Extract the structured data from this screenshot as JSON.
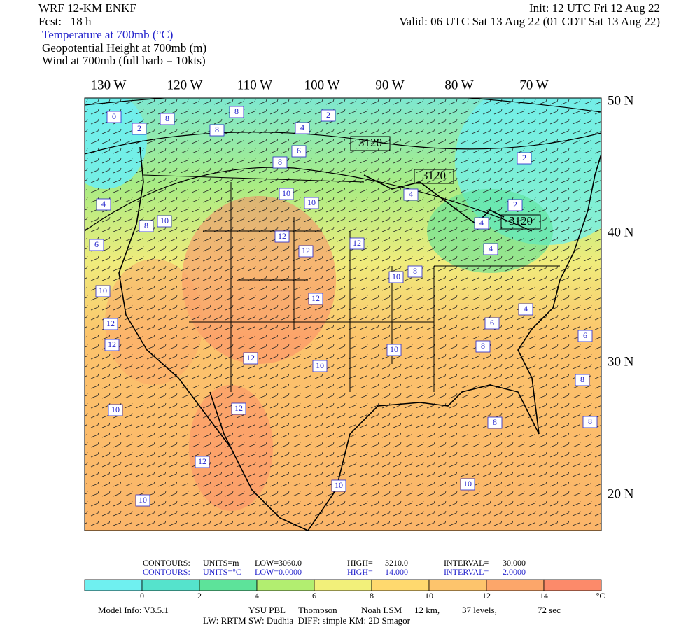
{
  "header": {
    "model": "WRF 12-KM ENKF",
    "forecast": "Fcst:   18 h",
    "init": "Init: 12 UTC Fri 12 Aug 22",
    "valid": "Valid: 06 UTC Sat 13 Aug 22 (01 CDT Sat 13 Aug 22)",
    "fields": [
      "Temperature at 700mb (°C)",
      "Geopotential Height at 700mb (m)",
      "Wind at 700mb (full barb = 10kts)"
    ]
  },
  "map": {
    "lon_labels": [
      "130 W",
      "120 W",
      "110 W",
      "100 W",
      "90 W",
      "80 W",
      "70 W"
    ],
    "lat_labels": [
      "50 N",
      "40 N",
      "30 N",
      "20 N"
    ],
    "height_labels": [
      3120,
      3120,
      3120
    ],
    "temperature_labels": [
      0,
      2,
      8,
      8,
      8,
      4,
      2,
      6,
      8,
      10,
      10,
      8,
      10,
      4,
      6,
      12,
      12,
      12,
      8,
      10,
      12,
      10,
      12,
      12,
      12,
      10,
      10,
      8,
      6,
      4,
      4,
      4,
      2,
      2,
      4,
      6,
      8,
      8,
      8,
      10,
      12,
      12,
      10,
      10,
      10
    ]
  },
  "footer": {
    "height_contours": [
      "CONTOURS:",
      "UNITS=m",
      "LOW=",
      "3060.0",
      "HIGH=",
      "3210.0",
      "INTERVAL=",
      "30.000"
    ],
    "temperature_contours": [
      "CONTOURS:",
      "UNITS=°C",
      "LOW=",
      "0.0000",
      "HIGH=",
      "14.000",
      "INTERVAL=",
      "2.0000"
    ],
    "colorbar": {
      "ticks": [
        "0",
        "2",
        "4",
        "6",
        "8",
        "10",
        "12",
        "14"
      ],
      "unit": "°C",
      "colors": [
        "#6ff0f0",
        "#55e3cc",
        "#5de39a",
        "#b2ee70",
        "#f2f07a",
        "#ffd96e",
        "#fdc46c",
        "#fca66a",
        "#fc8a6a"
      ]
    },
    "model_info": [
      "Model Info: V3.5.1",
      "YSU PBL",
      "Thompson",
      "Noah LSM",
      "12 km,",
      "37 levels,",
      "72 sec"
    ],
    "physics": "LW: RRTM SW: Dudhia  DIFF: simple KM: 2D Smagor"
  }
}
